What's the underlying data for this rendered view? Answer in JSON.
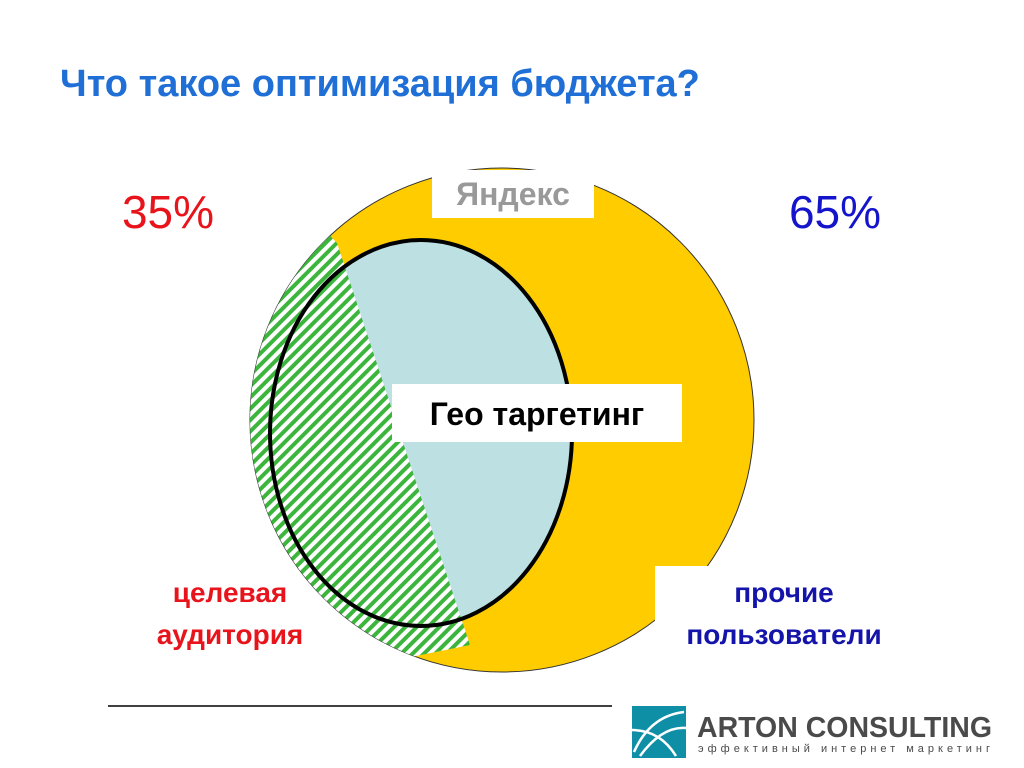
{
  "title": "Что такое оптимизация бюджета?",
  "circle_label": "Яндекс",
  "ellipse_label": "Гео таргетинг",
  "left": {
    "share": "35%",
    "label": [
      "целевая",
      "аудитория"
    ]
  },
  "right": {
    "share": "65%",
    "label": [
      "прочие",
      "пользователи"
    ]
  },
  "logo": {
    "name": "ARTON CONSULTING",
    "tagline": "эффективный интернет маркетинг"
  }
}
